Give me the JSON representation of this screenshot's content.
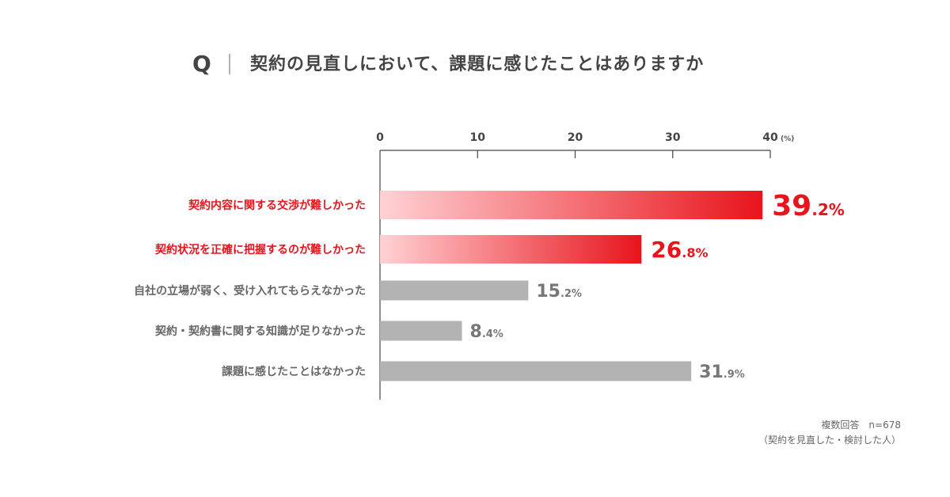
{
  "question": {
    "prefix": "Q",
    "text": "契約の見直しにおいて、課題に感じたことはありますか"
  },
  "note": {
    "line1": "複数回答　n=678",
    "line2": "（契約を見直した・検討した人）"
  },
  "colors": {
    "highlight": "#e8141c",
    "highlight_light": "#ffd2d4",
    "muted": "#b3b3b3",
    "muted_text": "#777777",
    "axis": "#444444"
  },
  "chart_data": {
    "type": "bar",
    "orientation": "horizontal",
    "categories": [
      "契約内容に関する交渉が難しかった",
      "契約状況を正確に把握するのが難しかった",
      "自社の立場が弱く、受け入れてもらえなかった",
      "契約・契約書に関する知識が足りなかった",
      "課題に感じたことはなかった"
    ],
    "values": [
      39.2,
      26.8,
      15.2,
      8.4,
      31.9
    ],
    "value_units": "%",
    "highlighted": [
      true,
      true,
      false,
      false,
      false
    ],
    "xlim": [
      0,
      40
    ],
    "ticks": [
      0,
      10,
      20,
      30,
      40
    ],
    "x_unit": "(%)",
    "grid": false
  }
}
